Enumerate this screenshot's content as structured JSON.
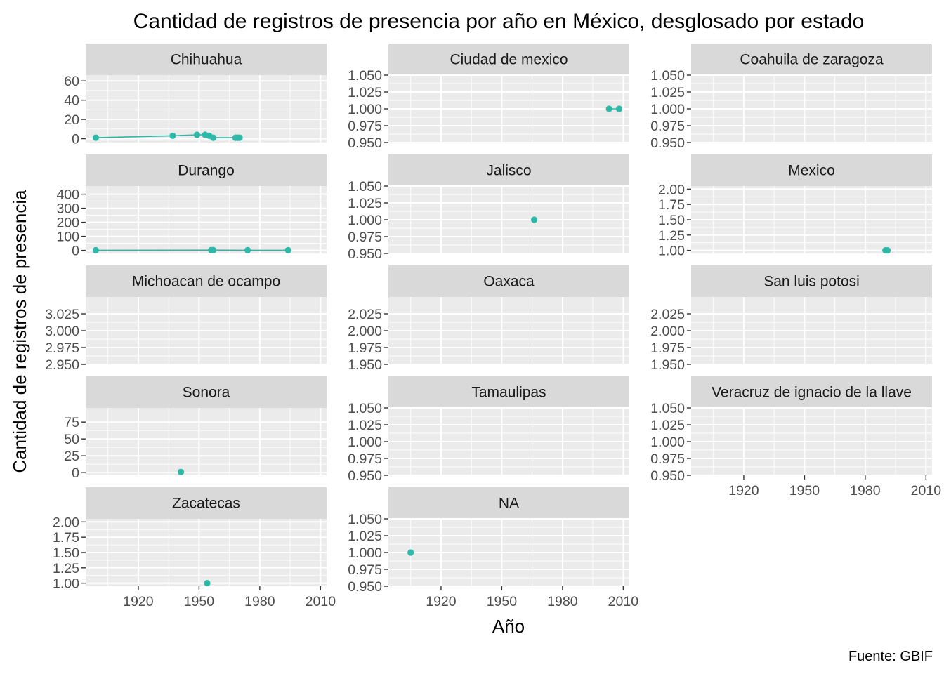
{
  "chart_data": {
    "type": "line",
    "title": "Cantidad de registros de presencia por año en México, desglosado por estado",
    "xlabel": "Año",
    "ylabel": "Cantidad de registros de presencia",
    "caption": "Fuente: GBIF",
    "xlim": [
      1894,
      2013
    ],
    "x_ticks": [
      1920,
      1950,
      1980,
      2010
    ],
    "x_tick_labels": [
      "1920",
      "1950",
      "1980",
      "2010"
    ],
    "series_color": "#2EB8A8",
    "grid": true,
    "panel_background": "#EBEBEB",
    "strip_background": "#D9D9D9",
    "panels": [
      {
        "name": "Chihuahua",
        "ylim": [
          -4,
          66
        ],
        "y_ticks": [
          0,
          20,
          40,
          60
        ],
        "y_tick_labels": [
          "0",
          "20",
          "40",
          "60"
        ],
        "points": [
          [
            1899,
            1
          ],
          [
            1937,
            3
          ],
          [
            1949,
            4
          ],
          [
            1953,
            4
          ],
          [
            1955,
            3
          ],
          [
            1957,
            1
          ],
          [
            1968,
            1
          ],
          [
            1969,
            1
          ],
          [
            1970,
            1
          ]
        ]
      },
      {
        "name": "Ciudad de mexico",
        "ylim": [
          0.95,
          1.05
        ],
        "y_ticks": [
          0.95,
          0.975,
          1.0,
          1.025,
          1.05
        ],
        "y_tick_labels": [
          "0.950",
          "0.975",
          "1.000",
          "1.025",
          "1.050"
        ],
        "points": [
          [
            2003,
            1
          ],
          [
            2008,
            1
          ]
        ]
      },
      {
        "name": "Coahuila de zaragoza",
        "ylim": [
          0.95,
          1.05
        ],
        "y_ticks": [
          0.95,
          0.975,
          1.0,
          1.025,
          1.05
        ],
        "y_tick_labels": [
          "0.950",
          "0.975",
          "1.000",
          "1.025",
          "1.050"
        ],
        "points": []
      },
      {
        "name": "Durango",
        "ylim": [
          -22,
          458
        ],
        "y_ticks": [
          0,
          100,
          200,
          300,
          400
        ],
        "y_tick_labels": [
          "0",
          "100",
          "200",
          "300",
          "400"
        ],
        "points": [
          [
            1899,
            1
          ],
          [
            1956,
            2
          ],
          [
            1957,
            2
          ],
          [
            1974,
            1
          ],
          [
            1994,
            1
          ]
        ]
      },
      {
        "name": "Jalisco",
        "ylim": [
          0.95,
          1.05
        ],
        "y_ticks": [
          0.95,
          0.975,
          1.0,
          1.025,
          1.05
        ],
        "y_tick_labels": [
          "0.950",
          "0.975",
          "1.000",
          "1.025",
          "1.050"
        ],
        "points": [
          [
            1966,
            1
          ]
        ]
      },
      {
        "name": "Mexico",
        "ylim": [
          0.95,
          2.05
        ],
        "y_ticks": [
          1.0,
          1.25,
          1.5,
          1.75,
          2.0
        ],
        "y_tick_labels": [
          "1.00",
          "1.25",
          "1.50",
          "1.75",
          "2.00"
        ],
        "points": [
          [
            1990,
            1
          ],
          [
            1991,
            1
          ]
        ]
      },
      {
        "name": "Michoacan de ocampo",
        "ylim": [
          2.95,
          3.05
        ],
        "y_ticks": [
          2.95,
          2.975,
          3.0,
          3.025
        ],
        "y_tick_labels": [
          "2.950",
          "2.975",
          "3.000",
          "3.025"
        ],
        "points": []
      },
      {
        "name": "Oaxaca",
        "ylim": [
          1.95,
          2.05
        ],
        "y_ticks": [
          1.95,
          1.975,
          2.0,
          2.025
        ],
        "y_tick_labels": [
          "1.950",
          "1.975",
          "2.000",
          "2.025"
        ],
        "points": []
      },
      {
        "name": "San luis potosi",
        "ylim": [
          1.95,
          2.05
        ],
        "y_ticks": [
          1.95,
          1.975,
          2.0,
          2.025
        ],
        "y_tick_labels": [
          "1.950",
          "1.975",
          "2.000",
          "2.025"
        ],
        "points": []
      },
      {
        "name": "Sonora",
        "ylim": [
          -4,
          96
        ],
        "y_ticks": [
          0,
          25,
          50,
          75
        ],
        "y_tick_labels": [
          "0",
          "25",
          "50",
          "75"
        ],
        "points": [
          [
            1941,
            1
          ]
        ]
      },
      {
        "name": "Tamaulipas",
        "ylim": [
          0.95,
          1.05
        ],
        "y_ticks": [
          0.95,
          0.975,
          1.0,
          1.025,
          1.05
        ],
        "y_tick_labels": [
          "0.950",
          "0.975",
          "1.000",
          "1.025",
          "1.050"
        ],
        "points": []
      },
      {
        "name": "Veracruz de ignacio de la llave",
        "ylim": [
          0.95,
          1.05
        ],
        "y_ticks": [
          0.95,
          0.975,
          1.0,
          1.025,
          1.05
        ],
        "y_tick_labels": [
          "0.950",
          "0.975",
          "1.000",
          "1.025",
          "1.050"
        ],
        "points": []
      },
      {
        "name": "Zacatecas",
        "ylim": [
          0.95,
          2.05
        ],
        "y_ticks": [
          1.0,
          1.25,
          1.5,
          1.75,
          2.0
        ],
        "y_tick_labels": [
          "1.00",
          "1.25",
          "1.50",
          "1.75",
          "2.00"
        ],
        "points": [
          [
            1954,
            1
          ]
        ]
      },
      {
        "name": "NA",
        "ylim": [
          0.95,
          1.05
        ],
        "y_ticks": [
          0.95,
          0.975,
          1.0,
          1.025,
          1.05
        ],
        "y_tick_labels": [
          "0.950",
          "0.975",
          "1.000",
          "1.025",
          "1.050"
        ],
        "points": [
          [
            1905,
            1
          ]
        ]
      }
    ]
  }
}
